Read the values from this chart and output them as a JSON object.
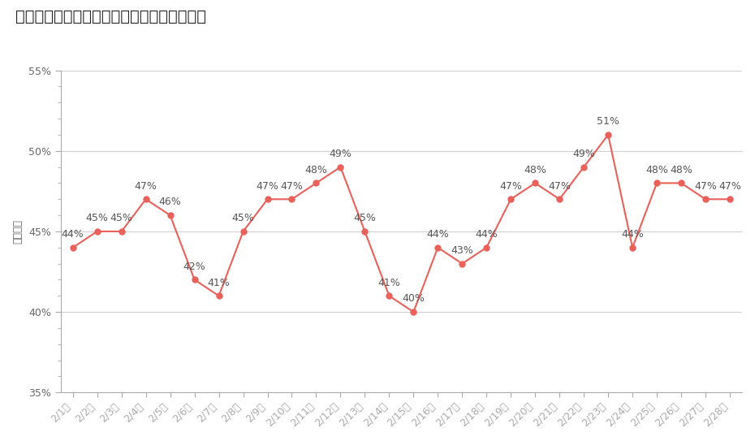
{
  "title": "各企業・団体ごとの目標歩数達成率（日次）",
  "ylabel": "平均歩数",
  "x_labels": [
    "2/1月",
    "2/2火",
    "2/3水",
    "2/4木",
    "2/5金",
    "2/6土",
    "2/7日",
    "2/8月",
    "2/9火",
    "2/10水",
    "2/11木",
    "2/12金",
    "2/13土",
    "2/14日",
    "2/15月",
    "2/16火",
    "2/17水",
    "2/18木",
    "2/19金",
    "2/20土",
    "2/21日",
    "2/22月",
    "2/23火",
    "2/24水",
    "2/25木",
    "2/26金",
    "2/27土",
    "2/28日"
  ],
  "values": [
    44,
    45,
    45,
    47,
    46,
    42,
    41,
    45,
    47,
    47,
    48,
    49,
    45,
    41,
    40,
    44,
    43,
    44,
    47,
    48,
    47,
    49,
    51,
    44,
    48,
    48,
    47,
    47
  ],
  "line_color": "#E8615A",
  "marker_color": "#E8615A",
  "bg_color": "#ffffff",
  "grid_color": "#d0d0d0",
  "title_fontsize": 14,
  "label_fontsize": 9,
  "tick_fontsize": 9,
  "annotation_fontsize": 9,
  "ylim_min": 35,
  "ylim_max": 55,
  "yticks": [
    35,
    40,
    45,
    50,
    55
  ],
  "ytick_labels": [
    "35%",
    "40%",
    "45%",
    "50%",
    "55%"
  ]
}
